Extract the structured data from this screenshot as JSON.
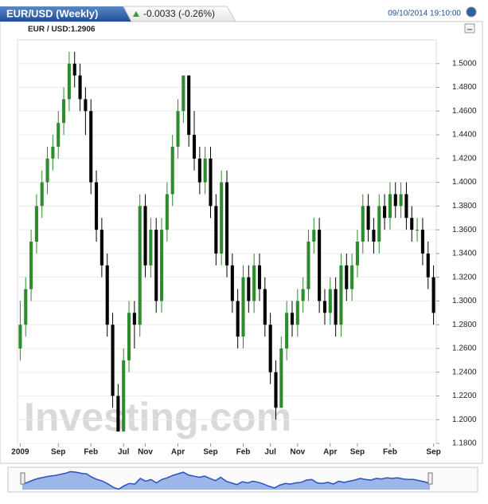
{
  "header": {
    "title": "EUR/USD (Weekly)",
    "change": "-0.0033 (-0.26%)",
    "timestamp": "09/10/2014 19:10:00",
    "instrument": "EUR / USD:1.2906"
  },
  "chart_data": {
    "type": "candlestick",
    "watermark": "Investing.com",
    "up_color": "#2e8b2e",
    "down_color": "#000000",
    "grid": true,
    "categories": [
      "2009",
      null,
      null,
      null,
      null,
      null,
      null,
      "Sep",
      null,
      null,
      null,
      null,
      null,
      "Feb",
      null,
      null,
      null,
      null,
      null,
      "Jul",
      null,
      null,
      null,
      "Nov",
      null,
      null,
      null,
      null,
      null,
      "Apr",
      null,
      null,
      null,
      null,
      null,
      "Sep",
      null,
      null,
      null,
      null,
      null,
      "Feb",
      null,
      null,
      null,
      null,
      "Jul",
      null,
      null,
      null,
      null,
      "Nov",
      null,
      null,
      null,
      null,
      null,
      "Apr",
      null,
      null,
      null,
      null,
      "Sep",
      null,
      null,
      null,
      null,
      null,
      "Feb",
      null,
      null,
      null,
      null,
      null,
      null,
      null,
      "Sep"
    ],
    "open": [
      1.26,
      1.28,
      1.31,
      1.35,
      1.38,
      1.4,
      1.42,
      1.43,
      1.45,
      1.47,
      1.5,
      1.49,
      1.47,
      1.46,
      1.4,
      1.36,
      1.33,
      1.28,
      1.22,
      1.19,
      1.25,
      1.29,
      1.28,
      1.38,
      1.33,
      1.36,
      1.3,
      1.36,
      1.39,
      1.43,
      1.46,
      1.49,
      1.44,
      1.42,
      1.4,
      1.42,
      1.38,
      1.34,
      1.4,
      1.33,
      1.3,
      1.27,
      1.32,
      1.3,
      1.33,
      1.31,
      1.28,
      1.24,
      1.21,
      1.26,
      1.29,
      1.28,
      1.3,
      1.31,
      1.35,
      1.36,
      1.3,
      1.29,
      1.31,
      1.28,
      1.33,
      1.31,
      1.33,
      1.35,
      1.38,
      1.36,
      1.35,
      1.38,
      1.37,
      1.39,
      1.38,
      1.39,
      1.37,
      1.36,
      1.36,
      1.34,
      1.32
    ],
    "high": [
      1.3,
      1.32,
      1.36,
      1.39,
      1.41,
      1.43,
      1.44,
      1.46,
      1.48,
      1.51,
      1.51,
      1.5,
      1.48,
      1.47,
      1.41,
      1.37,
      1.34,
      1.29,
      1.23,
      1.26,
      1.3,
      1.3,
      1.39,
      1.39,
      1.37,
      1.37,
      1.37,
      1.4,
      1.44,
      1.47,
      1.49,
      1.49,
      1.46,
      1.43,
      1.43,
      1.43,
      1.39,
      1.41,
      1.41,
      1.34,
      1.31,
      1.33,
      1.33,
      1.34,
      1.34,
      1.32,
      1.29,
      1.25,
      1.27,
      1.3,
      1.3,
      1.31,
      1.32,
      1.36,
      1.37,
      1.37,
      1.31,
      1.32,
      1.32,
      1.34,
      1.34,
      1.34,
      1.36,
      1.39,
      1.39,
      1.37,
      1.39,
      1.39,
      1.4,
      1.4,
      1.4,
      1.4,
      1.38,
      1.37,
      1.37,
      1.35,
      1.33
    ],
    "low": [
      1.25,
      1.27,
      1.3,
      1.34,
      1.37,
      1.39,
      1.41,
      1.42,
      1.44,
      1.46,
      1.48,
      1.46,
      1.44,
      1.39,
      1.35,
      1.32,
      1.27,
      1.21,
      1.19,
      1.19,
      1.24,
      1.26,
      1.27,
      1.32,
      1.32,
      1.29,
      1.29,
      1.35,
      1.38,
      1.42,
      1.45,
      1.43,
      1.41,
      1.39,
      1.39,
      1.37,
      1.33,
      1.33,
      1.32,
      1.29,
      1.26,
      1.26,
      1.29,
      1.29,
      1.3,
      1.27,
      1.23,
      1.2,
      1.21,
      1.25,
      1.27,
      1.27,
      1.29,
      1.3,
      1.34,
      1.29,
      1.28,
      1.28,
      1.27,
      1.27,
      1.3,
      1.3,
      1.32,
      1.34,
      1.35,
      1.34,
      1.34,
      1.36,
      1.36,
      1.37,
      1.37,
      1.36,
      1.35,
      1.35,
      1.33,
      1.31,
      1.28
    ],
    "close": [
      1.28,
      1.31,
      1.35,
      1.38,
      1.4,
      1.42,
      1.43,
      1.45,
      1.47,
      1.5,
      1.49,
      1.47,
      1.46,
      1.4,
      1.36,
      1.33,
      1.28,
      1.22,
      1.19,
      1.25,
      1.29,
      1.28,
      1.38,
      1.33,
      1.36,
      1.3,
      1.36,
      1.39,
      1.43,
      1.46,
      1.49,
      1.44,
      1.42,
      1.4,
      1.42,
      1.38,
      1.34,
      1.4,
      1.33,
      1.3,
      1.27,
      1.32,
      1.3,
      1.33,
      1.31,
      1.28,
      1.24,
      1.21,
      1.26,
      1.29,
      1.28,
      1.3,
      1.31,
      1.35,
      1.36,
      1.3,
      1.29,
      1.31,
      1.28,
      1.33,
      1.31,
      1.33,
      1.35,
      1.38,
      1.36,
      1.35,
      1.38,
      1.37,
      1.39,
      1.38,
      1.39,
      1.37,
      1.36,
      1.36,
      1.34,
      1.32,
      1.29
    ],
    "ylim": [
      1.18,
      1.52
    ],
    "yticks": [
      {
        "value": 1.18,
        "label": "1.1800"
      },
      {
        "value": 1.2,
        "label": "1.2000"
      },
      {
        "value": 1.22,
        "label": "1.2200"
      },
      {
        "value": 1.24,
        "label": "1.2400"
      },
      {
        "value": 1.26,
        "label": "1.2600"
      },
      {
        "value": 1.28,
        "label": "1.2800"
      },
      {
        "value": 1.3,
        "label": "1.3000"
      },
      {
        "value": 1.32,
        "label": "1.3200"
      },
      {
        "value": 1.34,
        "label": "1.3400"
      },
      {
        "value": 1.36,
        "label": "1.3600"
      },
      {
        "value": 1.38,
        "label": "1.3800"
      },
      {
        "value": 1.4,
        "label": "1.4000"
      },
      {
        "value": 1.42,
        "label": "1.4200"
      },
      {
        "value": 1.44,
        "label": "1.4400"
      },
      {
        "value": 1.46,
        "label": "1.4600"
      },
      {
        "value": 1.48,
        "label": "1.4800"
      },
      {
        "value": 1.5,
        "label": "1.5000"
      }
    ]
  }
}
